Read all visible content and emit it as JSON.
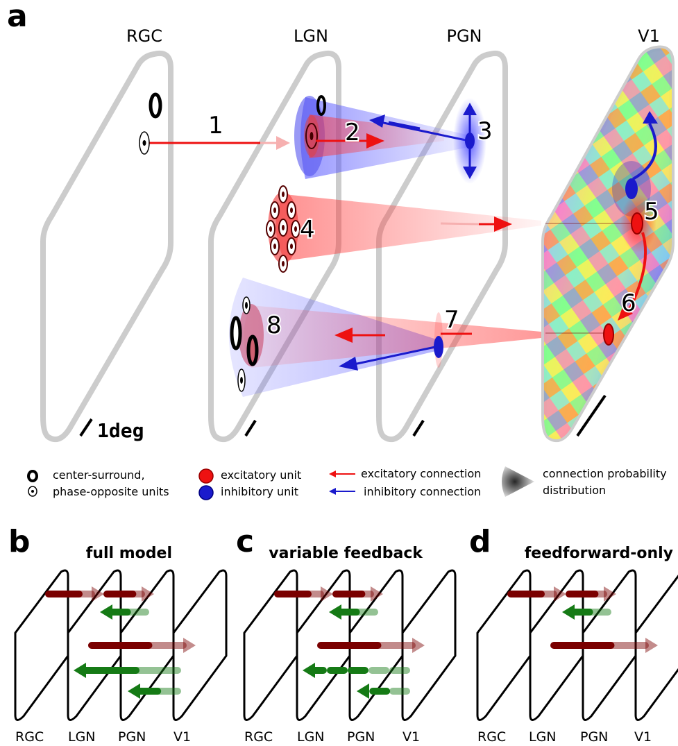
{
  "panel_a": {
    "letter": "a",
    "layers": [
      "RGC",
      "LGN",
      "PGN",
      "V1"
    ],
    "scale_label": "1deg",
    "numbers": [
      "1",
      "2",
      "3",
      "4",
      "5",
      "6",
      "7",
      "8"
    ]
  },
  "legend": {
    "center_surround": "center-surround,",
    "phase_opposite": "phase-opposite units",
    "excitatory_unit": "excitatory unit",
    "inhibitory_unit": "inhibitory unit",
    "excitatory_connection": "excitatory connection",
    "inhibitory_connection": "inhibitory connection",
    "probability_line1": "connection probability",
    "probability_line2": "distribution"
  },
  "panel_b": {
    "letter": "b",
    "title": "full model"
  },
  "panel_c": {
    "letter": "c",
    "title": "variable feedback"
  },
  "panel_d": {
    "letter": "d",
    "title": "feedforward-only"
  },
  "bottom_labels": [
    "RGC",
    "LGN",
    "PGN",
    "V1"
  ],
  "colors": {
    "excitatory": "#ee1111",
    "inhibitory": "#1a1acc",
    "ff_arrow": "#7a0000",
    "fb_arrow": "#157a15",
    "frame": "#cccccc"
  }
}
